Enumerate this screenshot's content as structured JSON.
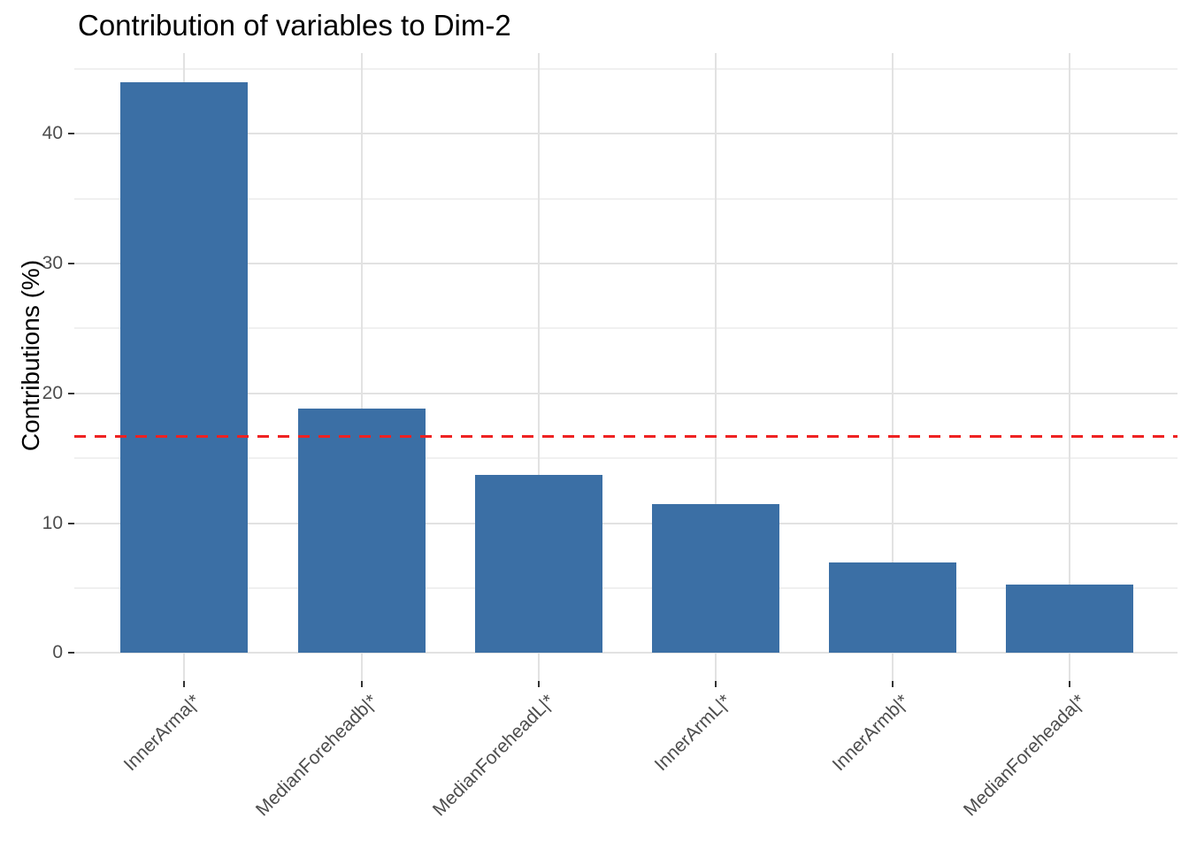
{
  "chart_data": {
    "type": "bar",
    "title": "Contribution of variables to Dim-2",
    "xlabel": "",
    "ylabel": "Contributions (%)",
    "categories": [
      "InnerArma|*",
      "MedianForeheadb|*",
      "MedianForeheadL|*",
      "InnerArmL|*",
      "InnerArmb|*",
      "MedianForeheada|*"
    ],
    "values": [
      44.0,
      18.8,
      13.7,
      11.5,
      7.0,
      5.3
    ],
    "ylim": [
      0,
      46
    ],
    "yticks_major": [
      0,
      10,
      20,
      30,
      40
    ],
    "yticks_minor": [
      5,
      15,
      25,
      35,
      45
    ],
    "x_label_rotation_deg": 45,
    "grid": "on",
    "legend": "none",
    "reference_line": {
      "value": 16.7,
      "style": "dashed",
      "color": "#ee2222",
      "meaning": "expected average contribution"
    },
    "bar_color": "#3b6fa5",
    "grid_major_color": "#e2e2e2",
    "grid_minor_color": "#f0f0f0",
    "axis_text_color": "#4d4d4d",
    "tick_color": "#333333"
  }
}
